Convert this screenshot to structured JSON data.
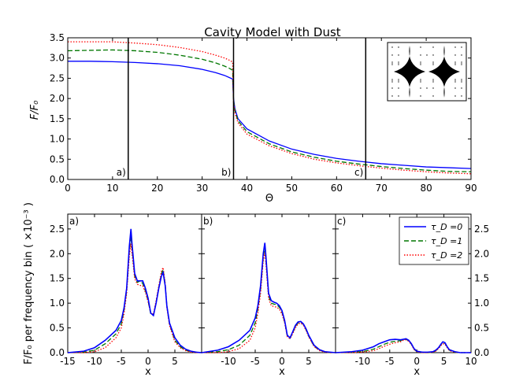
{
  "chart_data": [
    {
      "id": "top",
      "type": "line",
      "title": "Cavity Model with Dust",
      "xlabel": "Θ",
      "ylabel": "F/F₀",
      "xlim": [
        0,
        90
      ],
      "ylim": [
        0,
        3.5
      ],
      "xticks": [
        0,
        10,
        20,
        30,
        40,
        50,
        60,
        70,
        80,
        90
      ],
      "yticks": [
        0.0,
        0.5,
        1.0,
        1.5,
        2.0,
        2.5,
        3.0,
        3.5
      ],
      "x": [
        0,
        5,
        10,
        15,
        20,
        25,
        30,
        33,
        35,
        36,
        36.8,
        37,
        37.3,
        38,
        40,
        45,
        50,
        55,
        60,
        65,
        70,
        75,
        80,
        85,
        90
      ],
      "series": [
        {
          "name": "τ_D = 0",
          "color": "#0000ff",
          "dash": "solid",
          "values": [
            2.92,
            2.92,
            2.91,
            2.89,
            2.86,
            2.81,
            2.72,
            2.64,
            2.57,
            2.52,
            2.48,
            2.0,
            1.75,
            1.5,
            1.25,
            0.95,
            0.75,
            0.62,
            0.52,
            0.45,
            0.39,
            0.35,
            0.31,
            0.29,
            0.27
          ]
        },
        {
          "name": "τ_D = 1",
          "color": "#007700",
          "dash": "dashed",
          "values": [
            3.18,
            3.19,
            3.2,
            3.18,
            3.14,
            3.07,
            2.97,
            2.88,
            2.8,
            2.75,
            2.7,
            1.95,
            1.7,
            1.45,
            1.18,
            0.88,
            0.68,
            0.55,
            0.45,
            0.38,
            0.32,
            0.27,
            0.23,
            0.2,
            0.19
          ]
        },
        {
          "name": "τ_D = 2",
          "color": "#ff0000",
          "dash": "dotted",
          "values": [
            3.4,
            3.4,
            3.4,
            3.37,
            3.33,
            3.26,
            3.16,
            3.07,
            3.0,
            2.95,
            2.9,
            1.9,
            1.65,
            1.4,
            1.12,
            0.83,
            0.64,
            0.5,
            0.41,
            0.34,
            0.28,
            0.23,
            0.19,
            0.16,
            0.14
          ]
        }
      ],
      "vlines": [
        13.5,
        37,
        66.5
      ],
      "panel_labels": [
        {
          "text": "a)",
          "x": 13.5
        },
        {
          "text": "b)",
          "x": 37
        },
        {
          "text": "c)",
          "x": 66.5
        }
      ]
    },
    {
      "id": "bottom",
      "type": "line",
      "ylabel": "F/F₀ per frequency bin ( ×10⁻³ )",
      "xlabel": "x",
      "ylim": [
        0,
        2.8
      ],
      "yticks": [
        0.0,
        0.5,
        1.0,
        1.5,
        2.0,
        2.5
      ],
      "legend": {
        "placement": "top-right",
        "entries": [
          {
            "label": "τ_D =0",
            "color": "#0000ff",
            "dash": "solid"
          },
          {
            "label": "τ_D =1",
            "color": "#007700",
            "dash": "dashed"
          },
          {
            "label": "τ_D =2",
            "color": "#ff0000",
            "dash": "dotted"
          }
        ]
      },
      "panels": [
        {
          "label": "a)",
          "xlim": [
            -15,
            10
          ],
          "xticks": [
            -15,
            -10,
            -5,
            0,
            5
          ],
          "x": [
            -15,
            -12,
            -10,
            -8,
            -6,
            -5,
            -4.5,
            -4,
            -3.5,
            -3.2,
            -3,
            -2.5,
            -2,
            -1.5,
            -1,
            -0.5,
            0,
            0.5,
            1,
            1.5,
            2,
            2.5,
            2.8,
            3.2,
            3.5,
            4,
            5,
            6,
            7,
            8,
            9,
            10
          ],
          "series": [
            {
              "name": "τ_D =0",
              "values": [
                0.0,
                0.03,
                0.1,
                0.25,
                0.45,
                0.65,
                0.9,
                1.3,
                2.15,
                2.5,
                2.2,
                1.6,
                1.45,
                1.45,
                1.45,
                1.3,
                1.1,
                0.8,
                0.75,
                1.0,
                1.3,
                1.55,
                1.62,
                1.35,
                0.95,
                0.6,
                0.3,
                0.15,
                0.07,
                0.03,
                0.01,
                0.0
              ]
            },
            {
              "name": "τ_D =1",
              "values": [
                0.0,
                0.01,
                0.05,
                0.18,
                0.38,
                0.58,
                0.85,
                1.25,
                2.05,
                2.35,
                2.1,
                1.55,
                1.42,
                1.45,
                1.4,
                1.25,
                1.05,
                0.78,
                0.75,
                1.02,
                1.32,
                1.6,
                1.68,
                1.38,
                0.95,
                0.58,
                0.25,
                0.12,
                0.05,
                0.02,
                0.01,
                0.0
              ]
            },
            {
              "name": "τ_D =2",
              "values": [
                0.0,
                0.0,
                0.02,
                0.1,
                0.3,
                0.5,
                0.78,
                1.2,
                1.95,
                2.2,
                2.0,
                1.5,
                1.38,
                1.36,
                1.35,
                1.22,
                1.03,
                0.8,
                0.78,
                1.05,
                1.35,
                1.65,
                1.72,
                1.4,
                0.92,
                0.55,
                0.22,
                0.1,
                0.04,
                0.01,
                0.0,
                0.0
              ]
            }
          ]
        },
        {
          "label": "b)",
          "xlim": [
            -15,
            10
          ],
          "xticks": [
            -10,
            -5,
            0,
            5
          ],
          "x": [
            -15,
            -12,
            -10,
            -8,
            -6,
            -5,
            -4.5,
            -4,
            -3.5,
            -3.2,
            -3,
            -2.5,
            -2,
            -1.5,
            -1,
            -0.5,
            0,
            0.5,
            1,
            1.5,
            2,
            2.5,
            3,
            3.5,
            4,
            4.5,
            5,
            6,
            7,
            8,
            9,
            10
          ],
          "series": [
            {
              "name": "τ_D =0",
              "values": [
                0.0,
                0.05,
                0.12,
                0.25,
                0.45,
                0.7,
                0.95,
                1.35,
                2.0,
                2.22,
                1.95,
                1.2,
                1.05,
                1.02,
                1.0,
                0.95,
                0.85,
                0.65,
                0.35,
                0.3,
                0.42,
                0.55,
                0.62,
                0.63,
                0.58,
                0.48,
                0.35,
                0.15,
                0.06,
                0.02,
                0.01,
                0.0
              ]
            },
            {
              "name": "τ_D =1",
              "values": [
                0.0,
                0.02,
                0.06,
                0.15,
                0.35,
                0.6,
                0.88,
                1.28,
                1.92,
                2.12,
                1.88,
                1.15,
                1.0,
                0.98,
                0.97,
                0.92,
                0.82,
                0.62,
                0.33,
                0.29,
                0.4,
                0.53,
                0.6,
                0.62,
                0.57,
                0.46,
                0.33,
                0.13,
                0.05,
                0.02,
                0.0,
                0.0
              ]
            },
            {
              "name": "τ_D =2",
              "values": [
                0.0,
                0.0,
                0.02,
                0.08,
                0.25,
                0.5,
                0.8,
                1.2,
                1.85,
                2.02,
                1.8,
                1.1,
                0.95,
                0.93,
                0.92,
                0.88,
                0.78,
                0.6,
                0.32,
                0.28,
                0.38,
                0.5,
                0.58,
                0.6,
                0.55,
                0.45,
                0.32,
                0.12,
                0.04,
                0.01,
                0.0,
                0.0
              ]
            }
          ]
        },
        {
          "label": "c)",
          "xlim": [
            -15,
            10
          ],
          "xticks": [
            -10,
            -5,
            0,
            5,
            10
          ],
          "x": [
            -15,
            -12,
            -10,
            -8,
            -7,
            -6,
            -5,
            -4,
            -3,
            -2.5,
            -2,
            -1.5,
            -1,
            -0.5,
            0,
            1,
            2,
            3,
            3.5,
            4,
            4.5,
            4.8,
            5.2,
            5.6,
            6,
            7,
            8,
            9,
            10
          ],
          "series": [
            {
              "name": "τ_D =0",
              "values": [
                0.0,
                0.02,
                0.05,
                0.12,
                0.18,
                0.22,
                0.26,
                0.27,
                0.26,
                0.27,
                0.28,
                0.25,
                0.18,
                0.08,
                0.03,
                0.01,
                0.01,
                0.02,
                0.05,
                0.1,
                0.18,
                0.22,
                0.2,
                0.12,
                0.06,
                0.02,
                0.0,
                0.0,
                0.0
              ]
            },
            {
              "name": "τ_D =1",
              "values": [
                0.0,
                0.01,
                0.02,
                0.07,
                0.12,
                0.17,
                0.21,
                0.23,
                0.24,
                0.26,
                0.27,
                0.24,
                0.17,
                0.07,
                0.02,
                0.01,
                0.0,
                0.01,
                0.04,
                0.09,
                0.17,
                0.2,
                0.19,
                0.11,
                0.05,
                0.01,
                0.0,
                0.0,
                0.0
              ]
            },
            {
              "name": "τ_D =2",
              "values": [
                0.0,
                0.0,
                0.01,
                0.04,
                0.08,
                0.13,
                0.17,
                0.2,
                0.22,
                0.25,
                0.26,
                0.23,
                0.16,
                0.06,
                0.02,
                0.0,
                0.0,
                0.01,
                0.03,
                0.08,
                0.15,
                0.18,
                0.17,
                0.1,
                0.04,
                0.01,
                0.0,
                0.0,
                0.0
              ]
            }
          ]
        }
      ]
    }
  ],
  "inset": {
    "icon": "cavity-diamond-inset-icon"
  }
}
